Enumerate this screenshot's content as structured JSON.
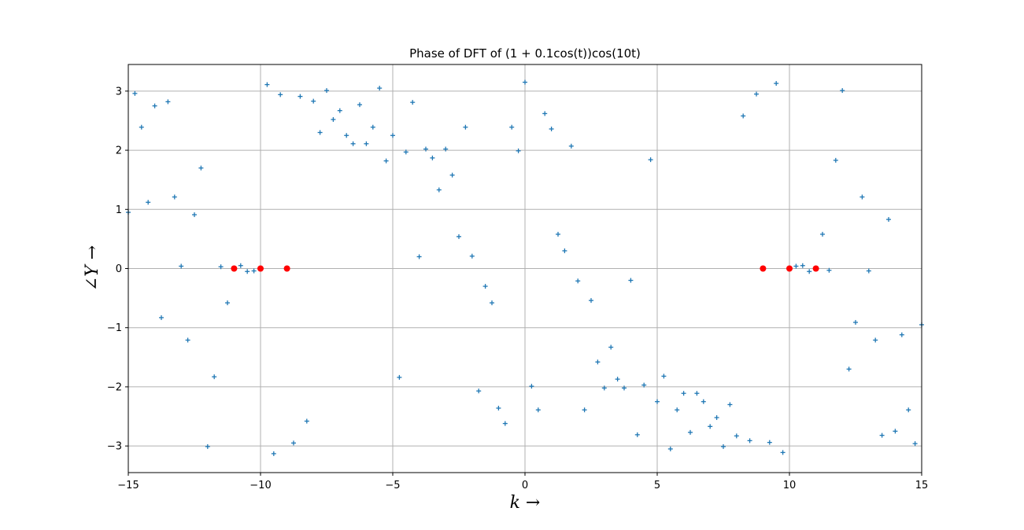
{
  "chart_data": {
    "type": "scatter",
    "title": "Phase of DFT of (1 + 0.1cos(t))cos(10t)",
    "xlabel": "k →",
    "ylabel": "∠Y →",
    "xlim": [
      -15,
      15
    ],
    "ylim": [
      -3.45,
      3.45
    ],
    "xticks": [
      -15,
      -10,
      -5,
      0,
      5,
      10,
      15
    ],
    "yticks": [
      -3,
      -2,
      -1,
      0,
      1,
      2,
      3
    ],
    "xtick_labels": [
      "−15",
      "−10",
      "−5",
      "0",
      "5",
      "10",
      "15"
    ],
    "ytick_labels": [
      "−3",
      "−2",
      "−1",
      "0",
      "1",
      "2",
      "3"
    ],
    "grid": true,
    "series": [
      {
        "marker": "plus",
        "color": "#1f77b4",
        "points": [
          [
            -15.0,
            0.95
          ],
          [
            -14.75,
            2.96
          ],
          [
            -14.5,
            2.39
          ],
          [
            -14.25,
            1.12
          ],
          [
            -14.0,
            2.75
          ],
          [
            -13.75,
            -0.83
          ],
          [
            -13.5,
            2.82
          ],
          [
            -13.25,
            1.21
          ],
          [
            -13.0,
            0.04
          ],
          [
            -12.75,
            -1.21
          ],
          [
            -12.5,
            0.91
          ],
          [
            -12.25,
            1.7
          ],
          [
            -12.0,
            -3.01
          ],
          [
            -11.75,
            -1.83
          ],
          [
            -11.5,
            0.03
          ],
          [
            -11.25,
            -0.58
          ],
          [
            -10.75,
            0.05
          ],
          [
            -10.5,
            -0.05
          ],
          [
            -10.25,
            -0.04
          ],
          [
            -9.75,
            3.11
          ],
          [
            -9.5,
            -3.13
          ],
          [
            -9.25,
            2.94
          ],
          [
            -8.75,
            -2.95
          ],
          [
            -8.5,
            2.91
          ],
          [
            -8.25,
            -2.58
          ],
          [
            -8.0,
            2.83
          ],
          [
            -7.75,
            2.3
          ],
          [
            -7.5,
            3.01
          ],
          [
            -7.25,
            2.52
          ],
          [
            -7.0,
            2.67
          ],
          [
            -6.75,
            2.25
          ],
          [
            -6.5,
            2.11
          ],
          [
            -6.25,
            2.77
          ],
          [
            -6.0,
            2.11
          ],
          [
            -5.75,
            2.39
          ],
          [
            -5.5,
            3.05
          ],
          [
            -5.25,
            1.82
          ],
          [
            -5.0,
            2.25
          ],
          [
            -4.75,
            -1.84
          ],
          [
            -4.5,
            1.97
          ],
          [
            -4.25,
            2.81
          ],
          [
            -4.0,
            0.2
          ],
          [
            -3.75,
            2.02
          ],
          [
            -3.5,
            1.87
          ],
          [
            -3.25,
            1.33
          ],
          [
            -3.0,
            2.02
          ],
          [
            -2.75,
            1.58
          ],
          [
            -2.5,
            0.54
          ],
          [
            -2.25,
            2.39
          ],
          [
            -2.0,
            0.21
          ],
          [
            -1.75,
            -2.07
          ],
          [
            -1.5,
            -0.3
          ],
          [
            -1.25,
            -0.58
          ],
          [
            -1.0,
            -2.36
          ],
          [
            -0.75,
            -2.62
          ],
          [
            -0.5,
            2.39
          ],
          [
            -0.25,
            1.99
          ],
          [
            0.0,
            3.15
          ],
          [
            0.25,
            -1.99
          ],
          [
            0.5,
            -2.39
          ],
          [
            0.75,
            2.62
          ],
          [
            1.0,
            2.36
          ],
          [
            1.25,
            0.58
          ],
          [
            1.5,
            0.3
          ],
          [
            1.75,
            2.07
          ],
          [
            2.0,
            -0.21
          ],
          [
            2.25,
            -2.39
          ],
          [
            2.5,
            -0.54
          ],
          [
            2.75,
            -1.58
          ],
          [
            3.0,
            -2.02
          ],
          [
            3.25,
            -1.33
          ],
          [
            3.5,
            -1.87
          ],
          [
            3.75,
            -2.02
          ],
          [
            4.0,
            -0.2
          ],
          [
            4.25,
            -2.81
          ],
          [
            4.5,
            -1.97
          ],
          [
            4.75,
            1.84
          ],
          [
            5.0,
            -2.25
          ],
          [
            5.25,
            -1.82
          ],
          [
            5.5,
            -3.05
          ],
          [
            5.75,
            -2.39
          ],
          [
            6.0,
            -2.11
          ],
          [
            6.25,
            -2.77
          ],
          [
            6.5,
            -2.11
          ],
          [
            6.75,
            -2.25
          ],
          [
            7.0,
            -2.67
          ],
          [
            7.25,
            -2.52
          ],
          [
            7.5,
            -3.01
          ],
          [
            7.75,
            -2.3
          ],
          [
            8.0,
            -2.83
          ],
          [
            8.25,
            2.58
          ],
          [
            8.5,
            -2.91
          ],
          [
            8.75,
            2.95
          ],
          [
            9.25,
            -2.94
          ],
          [
            9.5,
            3.13
          ],
          [
            9.75,
            -3.11
          ],
          [
            10.25,
            0.04
          ],
          [
            10.5,
            0.05
          ],
          [
            10.75,
            -0.05
          ],
          [
            11.25,
            0.58
          ],
          [
            11.5,
            -0.03
          ],
          [
            11.75,
            1.83
          ],
          [
            12.0,
            3.01
          ],
          [
            12.25,
            -1.7
          ],
          [
            12.5,
            -0.91
          ],
          [
            12.75,
            1.21
          ],
          [
            13.0,
            -0.04
          ],
          [
            13.25,
            -1.21
          ],
          [
            13.5,
            -2.82
          ],
          [
            13.75,
            0.83
          ],
          [
            14.0,
            -2.75
          ],
          [
            14.25,
            -1.12
          ],
          [
            14.5,
            -2.39
          ],
          [
            14.75,
            -2.96
          ],
          [
            15.0,
            -0.95
          ]
        ]
      },
      {
        "marker": "circle",
        "color": "#ff0000",
        "points": [
          [
            -11,
            0
          ],
          [
            -10,
            0
          ],
          [
            -9,
            0
          ],
          [
            9,
            0
          ],
          [
            10,
            0
          ],
          [
            11,
            0
          ]
        ]
      }
    ]
  }
}
